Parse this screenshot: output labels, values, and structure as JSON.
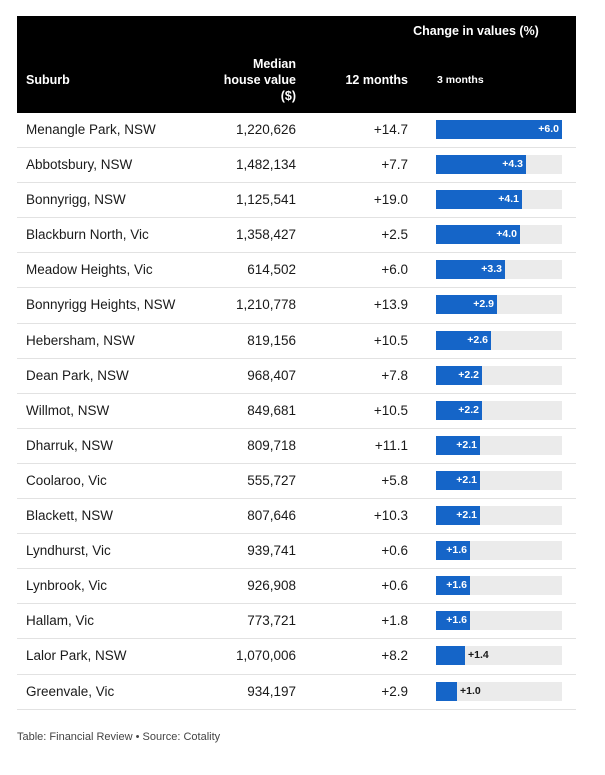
{
  "header": {
    "group_title": "Change in values (%)",
    "col_suburb": "Suburb",
    "col_median_line1": "Median",
    "col_median_line2": "house value",
    "col_median_line3": "($)",
    "col_12m": "12 months",
    "col_3m": "3 months"
  },
  "chart_data": {
    "type": "table",
    "columns": [
      "Suburb",
      "Median house value ($)",
      "12 months",
      "3 months"
    ],
    "bar_column": "3 months",
    "bar_max": 6.0,
    "bar_color": "#1565c8",
    "rows": [
      {
        "suburb": "Menangle Park, NSW",
        "median": "1,220,626",
        "m12": "+14.7",
        "m3": 6.0,
        "m3_label": "+6.0"
      },
      {
        "suburb": "Abbotsbury, NSW",
        "median": "1,482,134",
        "m12": "+7.7",
        "m3": 4.3,
        "m3_label": "+4.3"
      },
      {
        "suburb": "Bonnyrigg, NSW",
        "median": "1,125,541",
        "m12": "+19.0",
        "m3": 4.1,
        "m3_label": "+4.1"
      },
      {
        "suburb": "Blackburn North, Vic",
        "median": "1,358,427",
        "m12": "+2.5",
        "m3": 4.0,
        "m3_label": "+4.0"
      },
      {
        "suburb": "Meadow Heights, Vic",
        "median": "614,502",
        "m12": "+6.0",
        "m3": 3.3,
        "m3_label": "+3.3"
      },
      {
        "suburb": "Bonnyrigg Heights, NSW",
        "median": "1,210,778",
        "m12": "+13.9",
        "m3": 2.9,
        "m3_label": "+2.9"
      },
      {
        "suburb": "Hebersham, NSW",
        "median": "819,156",
        "m12": "+10.5",
        "m3": 2.6,
        "m3_label": "+2.6"
      },
      {
        "suburb": "Dean Park, NSW",
        "median": "968,407",
        "m12": "+7.8",
        "m3": 2.2,
        "m3_label": "+2.2"
      },
      {
        "suburb": "Willmot, NSW",
        "median": "849,681",
        "m12": "+10.5",
        "m3": 2.2,
        "m3_label": "+2.2"
      },
      {
        "suburb": "Dharruk, NSW",
        "median": "809,718",
        "m12": "+11.1",
        "m3": 2.1,
        "m3_label": "+2.1"
      },
      {
        "suburb": "Coolaroo, Vic",
        "median": "555,727",
        "m12": "+5.8",
        "m3": 2.1,
        "m3_label": "+2.1"
      },
      {
        "suburb": "Blackett, NSW",
        "median": "807,646",
        "m12": "+10.3",
        "m3": 2.1,
        "m3_label": "+2.1"
      },
      {
        "suburb": "Lyndhurst, Vic",
        "median": "939,741",
        "m12": "+0.6",
        "m3": 1.6,
        "m3_label": "+1.6"
      },
      {
        "suburb": "Lynbrook, Vic",
        "median": "926,908",
        "m12": "+0.6",
        "m3": 1.6,
        "m3_label": "+1.6"
      },
      {
        "suburb": "Hallam, Vic",
        "median": "773,721",
        "m12": "+1.8",
        "m3": 1.6,
        "m3_label": "+1.6"
      },
      {
        "suburb": "Lalor Park, NSW",
        "median": "1,070,006",
        "m12": "+8.2",
        "m3": 1.4,
        "m3_label": "+1.4"
      },
      {
        "suburb": "Greenvale, Vic",
        "median": "934,197",
        "m12": "+2.9",
        "m3": 1.0,
        "m3_label": "+1.0"
      }
    ]
  },
  "footer": {
    "text": "Table: Financial Review • Source: Cotality"
  }
}
